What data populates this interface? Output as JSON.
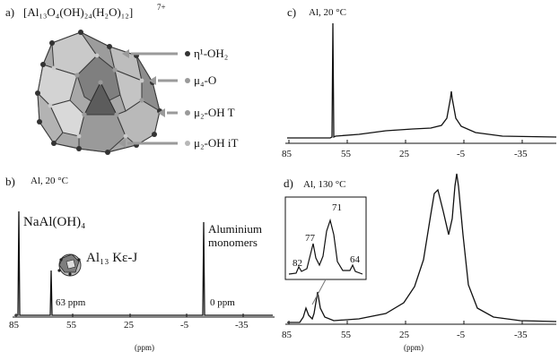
{
  "panel_a": {
    "letter": "a)",
    "formula": "[Al₁₃O₄(OH)₂₄(H₂O)₁₂]",
    "charge": "7+",
    "legend": [
      {
        "label": "η¹-OH₂",
        "color": "#333333"
      },
      {
        "label": "μ₄-O",
        "color": "#9a9a9a"
      },
      {
        "label": "μ₂-OH T",
        "color": "#9a9a9a"
      },
      {
        "label": "μ₂-OH iT",
        "color": "#b8b8b8"
      }
    ]
  },
  "panel_b": {
    "letter": "b)",
    "condition": "Al, 20 °C",
    "label_naal": "NaAl(OH)₄",
    "label_al13": "Al₁₃ Kε-J",
    "label_63": "63 ppm",
    "label_mono_1": "Aluminium",
    "label_mono_2": "monomers",
    "label_0": "0 ppm",
    "ticks": [
      "85",
      "55",
      "25",
      "-5",
      "-35"
    ],
    "axis_label": "(ppm)"
  },
  "panel_c": {
    "letter": "c)",
    "condition": "Al, 20 °C",
    "ticks": [
      "85",
      "55",
      "25",
      "-5",
      "-35"
    ]
  },
  "panel_d": {
    "letter": "d)",
    "condition": "Al, 130 °C",
    "inset_labels": [
      "82",
      "77",
      "71",
      "64"
    ],
    "ticks": [
      "85",
      "55",
      "25",
      "-5",
      "-35"
    ],
    "axis_label": "(ppm)"
  },
  "chart_data": [
    {
      "type": "line",
      "panel": "b",
      "title": "Al, 20 °C",
      "xlabel": "(ppm)",
      "xlim": [
        92,
        -47
      ],
      "x_reversed": true,
      "peaks_ppm": [
        80,
        63,
        0
      ],
      "annotations": [
        "NaAl(OH)₄",
        "63 ppm",
        "Aluminium monomers",
        "0 ppm",
        "Al₁₃ Kε-J"
      ]
    },
    {
      "type": "line",
      "panel": "c",
      "title": "Al, 20 °C",
      "xlim": [
        92,
        -47
      ],
      "x_reversed": true,
      "peaks_ppm": [
        63,
        0
      ],
      "features": "broad baseline hump between ~50 and ~10 ppm"
    },
    {
      "type": "line",
      "panel": "d",
      "title": "Al, 130 °C",
      "xlabel": "(ppm)",
      "xlim": [
        92,
        -47
      ],
      "x_reversed": true,
      "peaks_ppm": [
        82,
        77,
        71,
        64,
        10,
        2
      ],
      "inset_peaks_ppm": [
        82,
        77,
        71,
        64
      ]
    }
  ]
}
